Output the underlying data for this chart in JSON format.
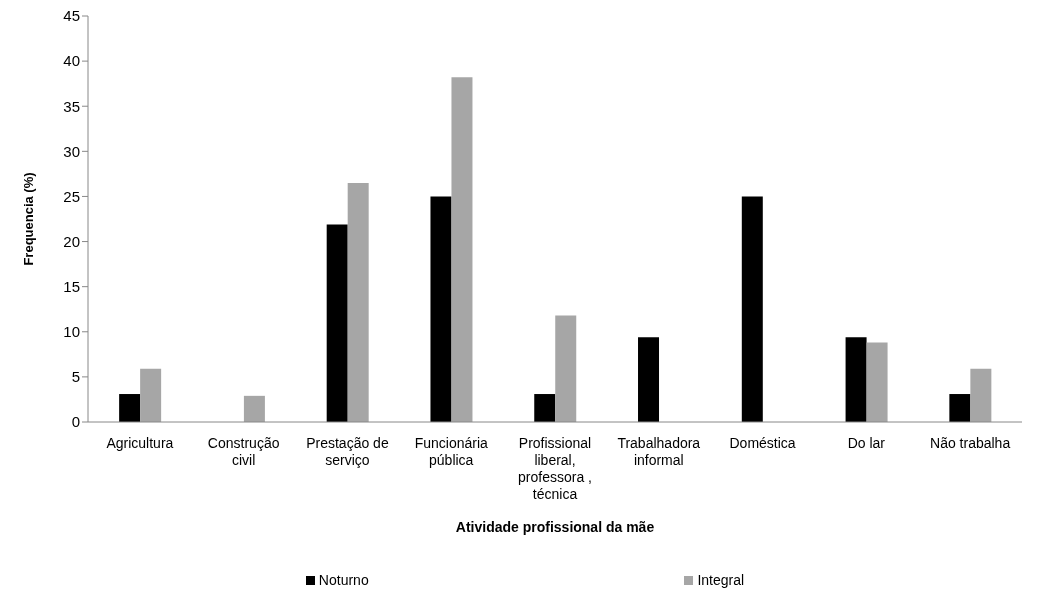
{
  "chart_data": {
    "type": "bar",
    "xlabel": "Atividade profissional da mãe",
    "ylabel": "Frequencia (%)",
    "categories": [
      "Agricultura",
      "Construção civil",
      "Prestação de serviço",
      "Funcionária pública",
      "Profissional liberal, professora , técnica",
      "Trabalhadora informal",
      "Doméstica",
      "Do lar",
      "Não trabalha"
    ],
    "series": [
      {
        "name": "Noturno",
        "color": "#000000",
        "values": [
          3.1,
          0,
          21.9,
          25,
          3.1,
          9.4,
          25,
          9.4,
          3.1
        ]
      },
      {
        "name": "Integral",
        "color": "#a6a6a6",
        "values": [
          5.9,
          2.9,
          26.5,
          38.2,
          11.8,
          0,
          0,
          8.8,
          5.9
        ]
      }
    ],
    "ylim": [
      0,
      45
    ],
    "yticks": [
      0,
      5,
      10,
      15,
      20,
      25,
      30,
      35,
      40,
      45
    ],
    "grid": false,
    "legend": "bottom"
  }
}
